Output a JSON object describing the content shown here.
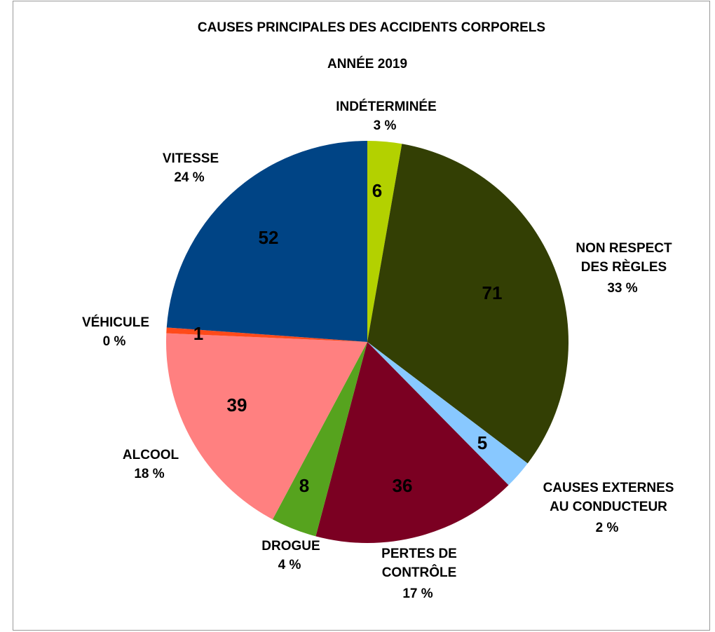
{
  "chart_data": {
    "type": "pie",
    "title": "CAUSES PRINCIPALES DES ACCIDENTS CORPORELS",
    "subtitle": "ANNÉE 2019",
    "subtitle_color": "#ff3333",
    "categories": [
      "INDÉTERMINÉE",
      "NON RESPECT\nDES RÈGLES",
      "CAUSES EXTERNES\nAU CONDUCTEUR",
      "PERTES DE\nCONTRÔLE",
      "DROGUE",
      "ALCOOL",
      "VÉHICULE",
      "VITESSE"
    ],
    "values": [
      6,
      71,
      5,
      36,
      8,
      39,
      1,
      52
    ],
    "percent_labels": [
      "3 %",
      "33 %",
      "2 %",
      "17 %",
      "4 %",
      "18 %",
      "0 %",
      "24 %"
    ],
    "colors": [
      "#b3d100",
      "#333f04",
      "#88c8ff",
      "#7b0022",
      "#56a31e",
      "#ff8080",
      "#ff4a1a",
      "#004485"
    ],
    "label_colors": [
      "#000000",
      "#ccff66",
      "#000000",
      "#ccff66",
      "#ccff66",
      "#ccff66",
      "#ccff66",
      "#ccff66"
    ]
  }
}
